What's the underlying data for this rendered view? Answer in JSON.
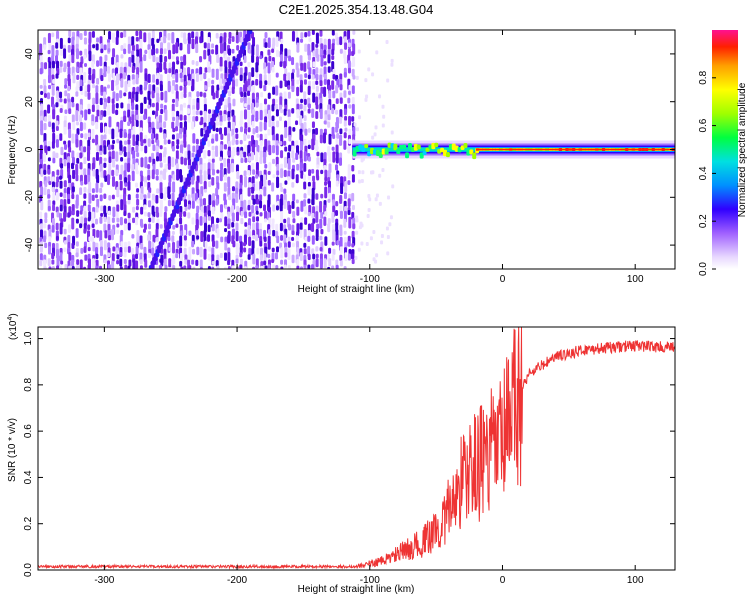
{
  "title": "C2E1.2025.354.13.48.G04",
  "chart_data": [
    {
      "type": "heatmap",
      "name": "spectrogram",
      "xlabel": "Height of straight line (km)",
      "ylabel": "Frequency (Hz)",
      "xlim": [
        -350,
        130
      ],
      "ylim": [
        -50,
        50
      ],
      "xticks": [
        -300,
        -200,
        -100,
        0,
        100
      ],
      "yticks": [
        -40,
        -20,
        0,
        20,
        40
      ],
      "noise_region_x": [
        -350,
        -113
      ],
      "signal_region_x": [
        -113,
        130
      ],
      "signal_frequency": 0,
      "diagonal_feature": {
        "x": [
          -265,
          -190
        ],
        "y": [
          -50,
          50
        ]
      },
      "colorbar": {
        "label": "Normalized spectral amplitude",
        "range": [
          0,
          1
        ],
        "ticks": [
          "0.0",
          "0.2",
          "0.4",
          "0.6",
          "0.8"
        ]
      }
    },
    {
      "type": "line",
      "name": "snr",
      "xlabel": "Height of straight line (km)",
      "ylabel": "SNR (10 * v/v)",
      "scale_label": "(x10",
      "scale_exp": "4",
      "scale_close": ")",
      "xlim": [
        -350,
        130
      ],
      "ylim": [
        0,
        1.05
      ],
      "xticks": [
        -300,
        -200,
        -100,
        0,
        100
      ],
      "yticks": [
        "0.0",
        "0.2",
        "0.4",
        "0.6",
        "0.8",
        "1.0"
      ],
      "color": "#ee3333",
      "shape_points": {
        "x": [
          -350,
          -110,
          -90,
          -60,
          -45,
          -30,
          -20,
          -10,
          0,
          10,
          20,
          40,
          60,
          80,
          100,
          130
        ],
        "y": [
          0.015,
          0.015,
          0.04,
          0.12,
          0.2,
          0.4,
          0.45,
          0.5,
          0.55,
          0.72,
          0.85,
          0.92,
          0.95,
          0.96,
          0.97,
          0.96
        ]
      }
    }
  ]
}
